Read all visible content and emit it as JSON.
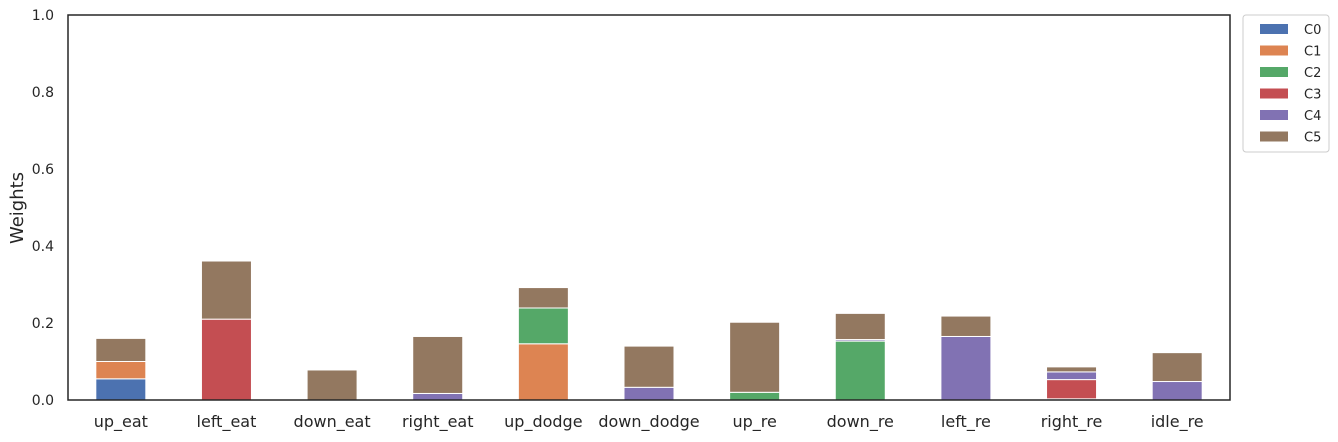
{
  "chart_data": {
    "type": "bar",
    "stacked": true,
    "title": "",
    "xlabel": "",
    "ylabel": "Weights",
    "ylim": [
      0,
      1
    ],
    "yticks": [
      "0.0",
      "0.2",
      "0.4",
      "0.6",
      "0.8",
      "1.0"
    ],
    "categories": [
      "up_eat",
      "left_eat",
      "down_eat",
      "right_eat",
      "up_dodge",
      "down_dodge",
      "up_re",
      "down_re",
      "left_re",
      "right_re",
      "idle_re"
    ],
    "legend_position": "outside-top-right",
    "series": [
      {
        "name": "C0",
        "color": "#4c72b0",
        "values": [
          0.055,
          0,
          0,
          0,
          0,
          0,
          0,
          0,
          0,
          0.003,
          0
        ]
      },
      {
        "name": "C1",
        "color": "#dd8452",
        "values": [
          0.045,
          0,
          0,
          0,
          0.146,
          0,
          0,
          0,
          0,
          0,
          0
        ]
      },
      {
        "name": "C2",
        "color": "#55a868",
        "values": [
          0,
          0,
          0,
          0,
          0.093,
          0,
          0.02,
          0.153,
          0,
          0,
          0
        ]
      },
      {
        "name": "C3",
        "color": "#c44e52",
        "values": [
          0,
          0.21,
          0,
          0,
          0,
          0,
          0,
          0,
          0,
          0.05,
          0
        ]
      },
      {
        "name": "C4",
        "color": "#8172b3",
        "values": [
          0,
          0,
          0,
          0.017,
          0,
          0.033,
          0,
          0.004,
          0.165,
          0.02,
          0.048
        ]
      },
      {
        "name": "C5",
        "color": "#937860",
        "values": [
          0.06,
          0.151,
          0.078,
          0.148,
          0.053,
          0.107,
          0.182,
          0.068,
          0.053,
          0.013,
          0.075
        ]
      }
    ]
  }
}
